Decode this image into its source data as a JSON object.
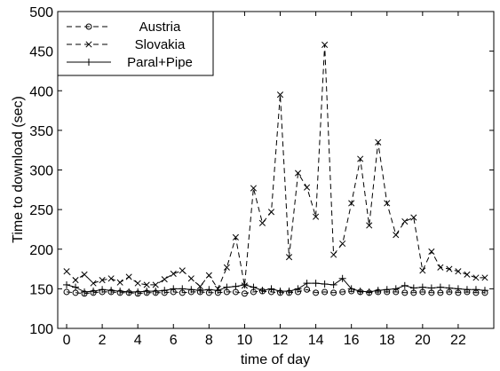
{
  "chart_data": {
    "type": "line",
    "title": "",
    "xlabel": "time of day",
    "ylabel": "Time to download (sec)",
    "xlim": [
      -0.5,
      24
    ],
    "ylim": [
      100,
      500
    ],
    "xticks": [
      0,
      2,
      4,
      6,
      8,
      10,
      12,
      14,
      16,
      18,
      20,
      22
    ],
    "yticks": [
      100,
      150,
      200,
      250,
      300,
      350,
      400,
      450,
      500
    ],
    "grid": false,
    "legend_position": "top-left",
    "x": [
      0,
      0.5,
      1,
      1.5,
      2,
      2.5,
      3,
      3.5,
      4,
      4.5,
      5,
      5.5,
      6,
      6.5,
      7,
      7.5,
      8,
      8.5,
      9,
      9.5,
      10,
      10.5,
      11,
      11.5,
      12,
      12.5,
      13,
      13.5,
      14,
      14.5,
      15,
      15.5,
      16,
      16.5,
      17,
      17.5,
      18,
      18.5,
      19,
      19.5,
      20,
      20.5,
      21,
      21.5,
      22,
      22.5,
      23,
      23.5
    ],
    "series": [
      {
        "name": "Austria",
        "style": "dashed",
        "marker": "circle",
        "color": "#000000",
        "values": [
          146,
          145,
          144,
          145,
          146,
          146,
          145,
          145,
          144,
          145,
          145,
          145,
          146,
          145,
          146,
          146,
          145,
          145,
          146,
          146,
          144,
          146,
          147,
          146,
          145,
          145,
          146,
          149,
          145,
          146,
          145,
          146,
          147,
          146,
          145,
          146,
          146,
          146,
          145,
          145,
          146,
          145,
          145,
          146,
          145,
          146,
          145,
          145
        ]
      },
      {
        "name": "Slovakia",
        "style": "dashed",
        "marker": "x",
        "color": "#000000",
        "values": [
          172,
          161,
          168,
          157,
          161,
          163,
          158,
          165,
          157,
          155,
          155,
          162,
          169,
          173,
          163,
          153,
          167,
          150,
          177,
          215,
          154,
          277,
          233,
          247,
          395,
          190,
          296,
          278,
          241,
          458,
          193,
          207,
          258,
          314,
          230,
          335,
          258,
          218,
          235,
          240,
          173,
          197,
          177,
          175,
          172,
          168,
          164,
          164
        ]
      },
      {
        "name": "Paral+Pipe",
        "style": "solid",
        "marker": "plus",
        "color": "#000000",
        "values": [
          155,
          152,
          146,
          147,
          149,
          148,
          147,
          146,
          146,
          147,
          147,
          148,
          150,
          150,
          149,
          148,
          149,
          148,
          152,
          153,
          155,
          152,
          148,
          150,
          147,
          147,
          150,
          157,
          157,
          156,
          155,
          163,
          150,
          147,
          146,
          148,
          149,
          150,
          154,
          151,
          152,
          151,
          152,
          151,
          150,
          149,
          149,
          148
        ]
      }
    ]
  }
}
